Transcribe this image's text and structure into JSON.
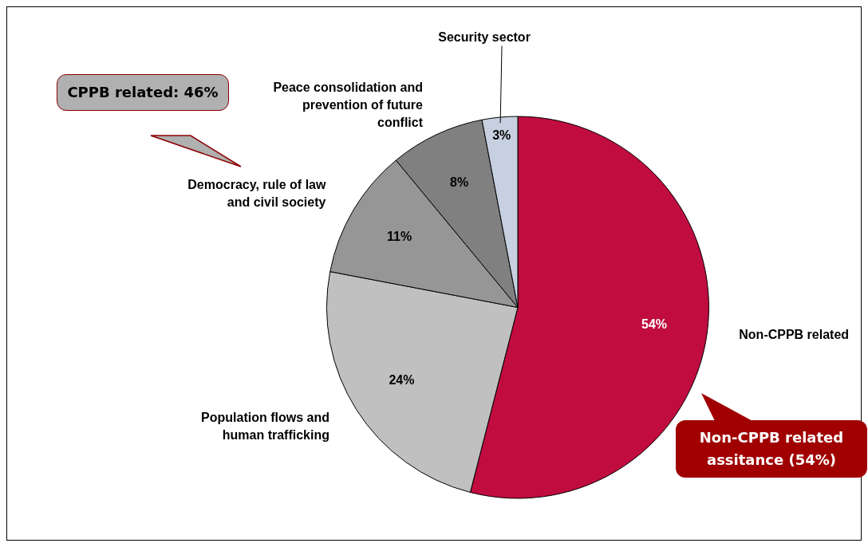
{
  "chart_data": {
    "type": "pie",
    "categories": [
      "Non-CPPB related",
      "Population flows and human trafficking",
      "Democracy, rule of law and civil society",
      "Peace consolidation and prevention of future conflict",
      "Security sector"
    ],
    "values": [
      54,
      24,
      11,
      8,
      3
    ],
    "value_labels": [
      "54%",
      "24%",
      "11%",
      "8%",
      "3%"
    ],
    "colors": [
      "#c00c3f",
      "#c0c0c0",
      "#969696",
      "#808080",
      "#c6d0e0"
    ],
    "legend": false,
    "annotations": [
      "CPPB related: 46%",
      "Non-CPPB related assitance (54%)"
    ]
  }
}
